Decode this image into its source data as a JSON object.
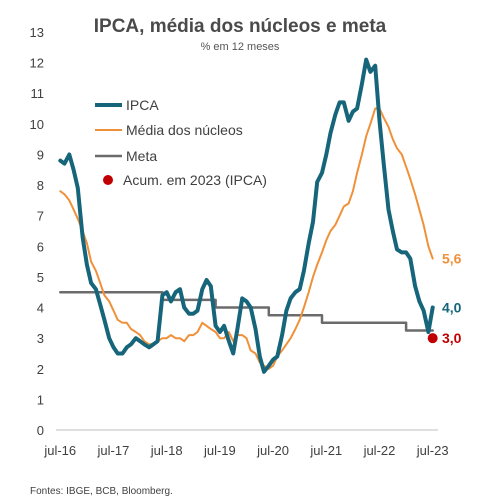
{
  "chart_data": {
    "type": "line",
    "title": "IPCA, média dos núcleos  e meta",
    "subtitle": "% em 12 meses",
    "source": "Fontes: IBGE, BCB, Bloomberg.",
    "ylim": [
      0,
      13
    ],
    "y_ticks": [
      "0",
      "1",
      "2",
      "3",
      "4",
      "5",
      "6",
      "7",
      "8",
      "9",
      "10",
      "11",
      "12",
      "13"
    ],
    "x_ticks": [
      {
        "label": "jul-16",
        "t": 2016.5
      },
      {
        "label": "jul-17",
        "t": 2017.5
      },
      {
        "label": "jul-18",
        "t": 2018.5
      },
      {
        "label": "jul-19",
        "t": 2019.5
      },
      {
        "label": "jul-20",
        "t": 2020.5
      },
      {
        "label": "jul-21",
        "t": 2021.5
      },
      {
        "label": "jul-22",
        "t": 2022.5
      },
      {
        "label": "jul-23",
        "t": 2023.5
      }
    ],
    "xlim": [
      2016.42,
      2023.6
    ],
    "grid": false,
    "legend_position": "top-left",
    "series": [
      {
        "name": "IPCA",
        "color": "#16657a",
        "points": [
          [
            2016.5,
            8.8
          ],
          [
            2016.58,
            8.7
          ],
          [
            2016.67,
            9.0
          ],
          [
            2016.75,
            8.5
          ],
          [
            2016.83,
            7.9
          ],
          [
            2016.92,
            6.3
          ],
          [
            2017.0,
            5.4
          ],
          [
            2017.08,
            4.8
          ],
          [
            2017.17,
            4.6
          ],
          [
            2017.25,
            4.1
          ],
          [
            2017.33,
            3.6
          ],
          [
            2017.42,
            3.0
          ],
          [
            2017.5,
            2.7
          ],
          [
            2017.58,
            2.5
          ],
          [
            2017.67,
            2.5
          ],
          [
            2017.75,
            2.7
          ],
          [
            2017.83,
            2.8
          ],
          [
            2017.92,
            3.0
          ],
          [
            2018.0,
            2.9
          ],
          [
            2018.08,
            2.8
          ],
          [
            2018.17,
            2.7
          ],
          [
            2018.25,
            2.8
          ],
          [
            2018.33,
            2.9
          ],
          [
            2018.42,
            4.4
          ],
          [
            2018.5,
            4.5
          ],
          [
            2018.58,
            4.2
          ],
          [
            2018.67,
            4.5
          ],
          [
            2018.75,
            4.6
          ],
          [
            2018.83,
            4.0
          ],
          [
            2018.92,
            3.8
          ],
          [
            2019.0,
            3.8
          ],
          [
            2019.08,
            3.9
          ],
          [
            2019.17,
            4.6
          ],
          [
            2019.25,
            4.9
          ],
          [
            2019.33,
            4.7
          ],
          [
            2019.42,
            3.4
          ],
          [
            2019.5,
            3.2
          ],
          [
            2019.58,
            3.4
          ],
          [
            2019.67,
            2.9
          ],
          [
            2019.75,
            2.5
          ],
          [
            2019.83,
            3.3
          ],
          [
            2019.92,
            4.3
          ],
          [
            2020.0,
            4.2
          ],
          [
            2020.08,
            4.0
          ],
          [
            2020.17,
            3.3
          ],
          [
            2020.25,
            2.4
          ],
          [
            2020.33,
            1.9
          ],
          [
            2020.42,
            2.1
          ],
          [
            2020.5,
            2.3
          ],
          [
            2020.58,
            2.4
          ],
          [
            2020.67,
            3.1
          ],
          [
            2020.75,
            3.9
          ],
          [
            2020.83,
            4.3
          ],
          [
            2020.92,
            4.5
          ],
          [
            2021.0,
            4.6
          ],
          [
            2021.08,
            5.2
          ],
          [
            2021.17,
            6.1
          ],
          [
            2021.25,
            6.8
          ],
          [
            2021.33,
            8.1
          ],
          [
            2021.42,
            8.4
          ],
          [
            2021.5,
            9.0
          ],
          [
            2021.58,
            9.7
          ],
          [
            2021.67,
            10.3
          ],
          [
            2021.75,
            10.7
          ],
          [
            2021.83,
            10.7
          ],
          [
            2021.92,
            10.1
          ],
          [
            2022.0,
            10.4
          ],
          [
            2022.08,
            10.5
          ],
          [
            2022.17,
            11.3
          ],
          [
            2022.25,
            12.1
          ],
          [
            2022.33,
            11.7
          ],
          [
            2022.42,
            11.9
          ],
          [
            2022.5,
            10.1
          ],
          [
            2022.58,
            8.7
          ],
          [
            2022.67,
            7.2
          ],
          [
            2022.75,
            6.5
          ],
          [
            2022.83,
            5.9
          ],
          [
            2022.92,
            5.8
          ],
          [
            2023.0,
            5.8
          ],
          [
            2023.08,
            5.6
          ],
          [
            2023.17,
            4.7
          ],
          [
            2023.25,
            4.2
          ],
          [
            2023.33,
            3.9
          ],
          [
            2023.42,
            3.2
          ],
          [
            2023.5,
            4.0
          ]
        ]
      },
      {
        "name": "Média dos núcleos",
        "color": "#f0913a",
        "points": [
          [
            2016.5,
            7.8
          ],
          [
            2016.58,
            7.7
          ],
          [
            2016.67,
            7.5
          ],
          [
            2016.75,
            7.2
          ],
          [
            2016.83,
            6.9
          ],
          [
            2016.92,
            6.5
          ],
          [
            2017.0,
            6.1
          ],
          [
            2017.08,
            5.5
          ],
          [
            2017.17,
            5.2
          ],
          [
            2017.25,
            4.8
          ],
          [
            2017.33,
            4.4
          ],
          [
            2017.42,
            4.2
          ],
          [
            2017.5,
            3.9
          ],
          [
            2017.58,
            3.6
          ],
          [
            2017.67,
            3.5
          ],
          [
            2017.75,
            3.5
          ],
          [
            2017.83,
            3.3
          ],
          [
            2017.92,
            3.2
          ],
          [
            2018.0,
            3.1
          ],
          [
            2018.08,
            2.9
          ],
          [
            2018.17,
            2.8
          ],
          [
            2018.25,
            2.8
          ],
          [
            2018.33,
            2.9
          ],
          [
            2018.42,
            3.0
          ],
          [
            2018.5,
            3.0
          ],
          [
            2018.58,
            3.1
          ],
          [
            2018.67,
            3.0
          ],
          [
            2018.75,
            3.0
          ],
          [
            2018.83,
            2.9
          ],
          [
            2018.92,
            3.1
          ],
          [
            2019.0,
            3.1
          ],
          [
            2019.08,
            3.2
          ],
          [
            2019.17,
            3.5
          ],
          [
            2019.25,
            3.4
          ],
          [
            2019.33,
            3.3
          ],
          [
            2019.42,
            3.2
          ],
          [
            2019.5,
            3.0
          ],
          [
            2019.58,
            3.0
          ],
          [
            2019.67,
            3.2
          ],
          [
            2019.75,
            2.9
          ],
          [
            2019.83,
            3.1
          ],
          [
            2019.92,
            3.1
          ],
          [
            2020.0,
            3.0
          ],
          [
            2020.08,
            2.6
          ],
          [
            2020.17,
            2.5
          ],
          [
            2020.25,
            2.2
          ],
          [
            2020.33,
            2.1
          ],
          [
            2020.42,
            2.0
          ],
          [
            2020.5,
            2.1
          ],
          [
            2020.58,
            2.4
          ],
          [
            2020.67,
            2.6
          ],
          [
            2020.75,
            2.8
          ],
          [
            2020.83,
            3.0
          ],
          [
            2020.92,
            3.3
          ],
          [
            2021.0,
            3.6
          ],
          [
            2021.08,
            4.0
          ],
          [
            2021.17,
            4.5
          ],
          [
            2021.25,
            5.0
          ],
          [
            2021.33,
            5.4
          ],
          [
            2021.42,
            5.8
          ],
          [
            2021.5,
            6.2
          ],
          [
            2021.58,
            6.5
          ],
          [
            2021.67,
            6.7
          ],
          [
            2021.75,
            7.0
          ],
          [
            2021.83,
            7.3
          ],
          [
            2021.92,
            7.4
          ],
          [
            2022.0,
            7.8
          ],
          [
            2022.08,
            8.4
          ],
          [
            2022.17,
            9.0
          ],
          [
            2022.25,
            9.6
          ],
          [
            2022.33,
            10.0
          ],
          [
            2022.42,
            10.5
          ],
          [
            2022.5,
            10.5
          ],
          [
            2022.58,
            10.2
          ],
          [
            2022.67,
            9.9
          ],
          [
            2022.75,
            9.5
          ],
          [
            2022.83,
            9.2
          ],
          [
            2022.92,
            9.0
          ],
          [
            2023.0,
            8.6
          ],
          [
            2023.08,
            8.2
          ],
          [
            2023.17,
            7.7
          ],
          [
            2023.25,
            7.2
          ],
          [
            2023.33,
            6.7
          ],
          [
            2023.42,
            6.0
          ],
          [
            2023.5,
            5.6
          ]
        ]
      },
      {
        "name": "Meta",
        "color": "#6b6b6b",
        "points": [
          [
            2016.5,
            4.5
          ],
          [
            2018.42,
            4.5
          ],
          [
            2018.42,
            4.25
          ],
          [
            2019.42,
            4.25
          ],
          [
            2019.42,
            4.0
          ],
          [
            2020.42,
            4.0
          ],
          [
            2020.42,
            3.75
          ],
          [
            2021.42,
            3.75
          ],
          [
            2021.42,
            3.5
          ],
          [
            2022.42,
            3.5
          ],
          [
            2022.42,
            3.5
          ],
          [
            2023.0,
            3.5
          ],
          [
            2023.0,
            3.25
          ],
          [
            2023.5,
            3.25
          ]
        ]
      }
    ],
    "marker": {
      "name": "Acum. em 2023 (IPCA)",
      "color": "#c00000",
      "t": 2023.5,
      "value": 3.0
    },
    "end_labels": [
      {
        "text": "5,6",
        "value": 5.6,
        "color": "#f0913a"
      },
      {
        "text": "4,0",
        "value": 4.0,
        "color": "#16657a"
      },
      {
        "text": "3,0",
        "value": 3.0,
        "color": "#c00000"
      }
    ]
  }
}
